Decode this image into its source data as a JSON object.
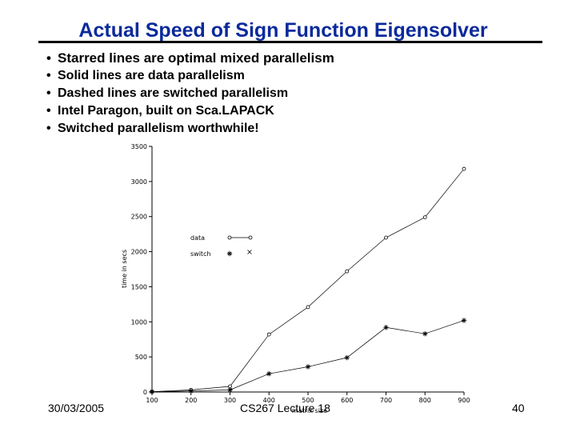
{
  "slide": {
    "title": "Actual Speed of Sign Function Eigensolver",
    "bullets": [
      "Starred lines are optimal mixed parallelism",
      "Solid lines are data parallelism",
      "Dashed lines are switched parallelism",
      "Intel Paragon, built on Sca.LAPACK",
      "Switched parallelism worthwhile!"
    ],
    "footer": {
      "date": "30/03/2005",
      "course": "CS267 Lecture 18",
      "page": "40"
    },
    "colors": {
      "title": "#0b2a9a",
      "text": "#000000"
    }
  },
  "chart_data": {
    "type": "line",
    "xlabel": "matrix size",
    "ylabel": "time in secs",
    "xlim": [
      100,
      900
    ],
    "ylim": [
      0,
      3500
    ],
    "xticks": [
      "100",
      "200",
      "300",
      "400",
      "500",
      "600",
      "700",
      "800",
      "900"
    ],
    "yticks": [
      "0",
      "500",
      "1000",
      "1500",
      "2000",
      "2500",
      "3000",
      "3500"
    ],
    "grid": false,
    "legend": "upper-left",
    "series": [
      {
        "name": "data",
        "marker": "circle",
        "line": "solid",
        "x": [
          100,
          200,
          300,
          400,
          500,
          600,
          700,
          800,
          900
        ],
        "y": [
          5,
          30,
          80,
          820,
          1210,
          1720,
          2200,
          2490,
          3180
        ]
      },
      {
        "name": "switch",
        "marker": "star",
        "line": "solid",
        "x": [
          100,
          200,
          300,
          400,
          500,
          600,
          700,
          800,
          900
        ],
        "y": [
          3,
          15,
          30,
          260,
          360,
          490,
          920,
          830,
          1020
        ]
      }
    ],
    "legend_extra_marker": "x"
  }
}
